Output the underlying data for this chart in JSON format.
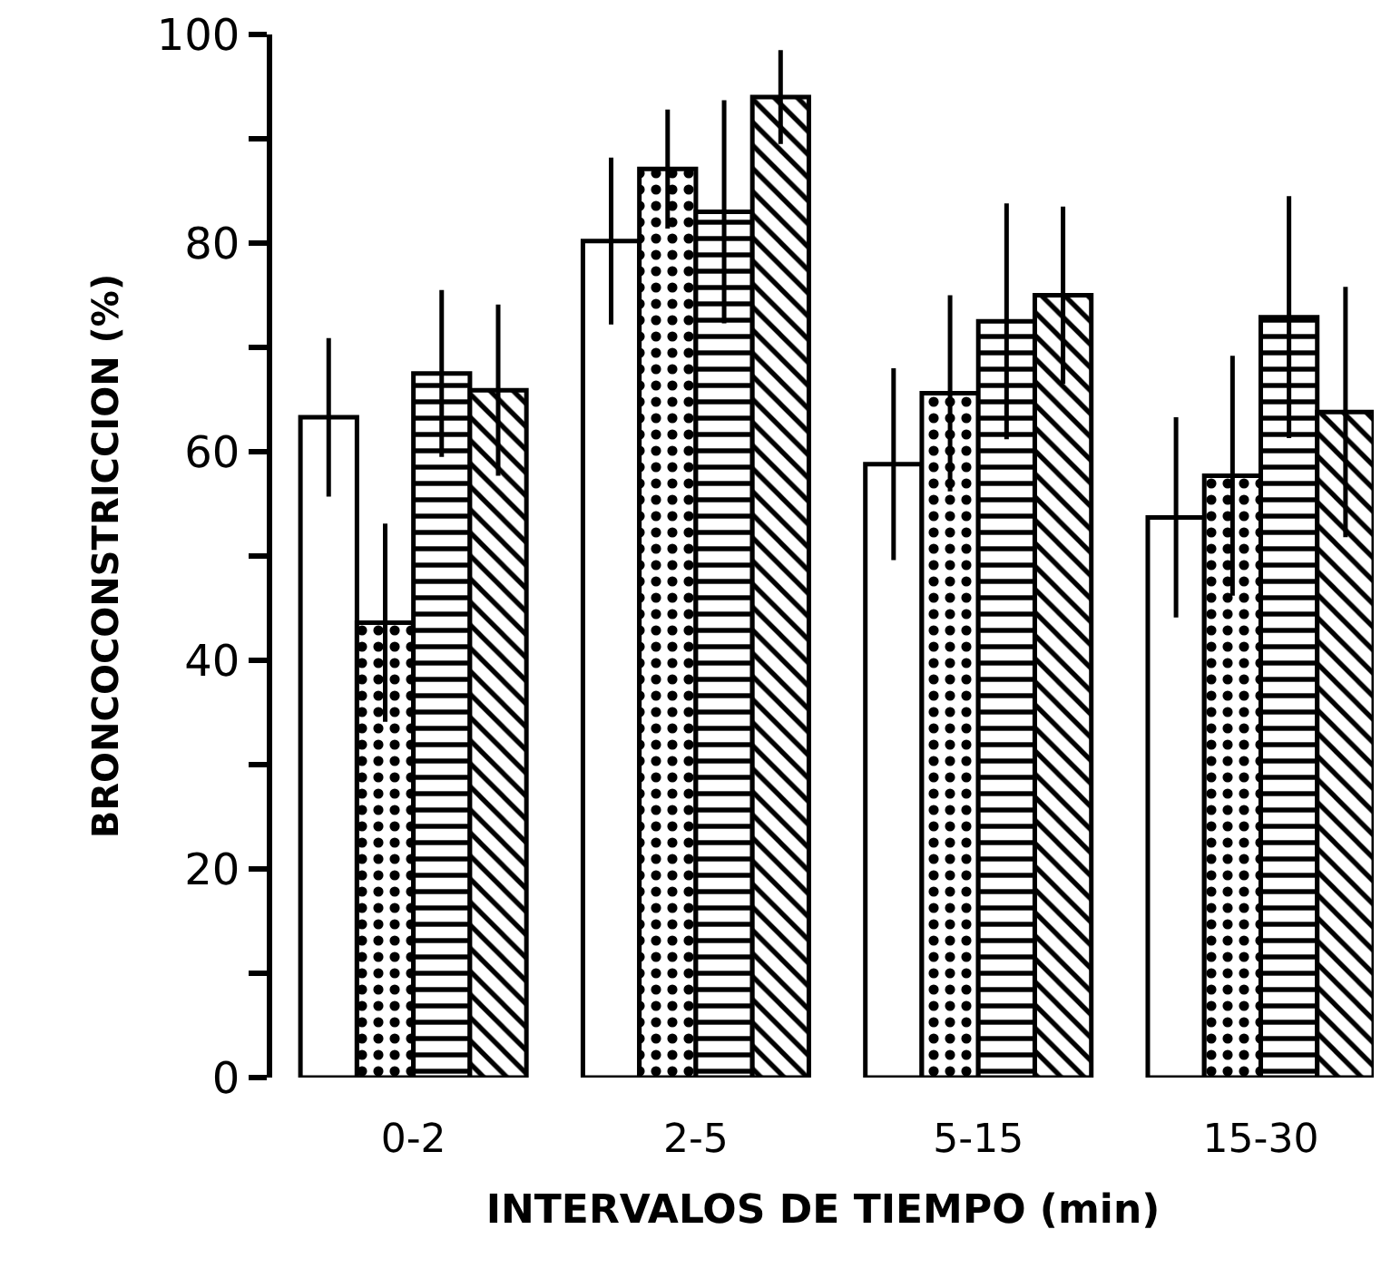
{
  "chart_data": {
    "type": "bar",
    "xlabel": "INTERVALOS DE TIEMPO (min)",
    "ylabel": "BRONCOCONSTRICCION (%)",
    "categories": [
      "0-2",
      "2-5",
      "5-15",
      "15-30"
    ],
    "series": [
      {
        "color": "#ffffff",
        "values": [
          63.3,
          80.2,
          58.8,
          53.7
        ],
        "errors": [
          7.6,
          8,
          9.2,
          9.6
        ]
      },
      {
        "color": "#000000",
        "values": [
          43.6,
          87.1,
          65.6,
          57.7
        ],
        "errors": [
          9.5,
          5.7,
          9.4,
          11.5
        ]
      },
      {
        "color": "#000000",
        "values": [
          67.5,
          83,
          72.5,
          72.9
        ],
        "errors": [
          8,
          10.7,
          11.3,
          11.6
        ]
      },
      {
        "color": "#000000",
        "values": [
          65.9,
          94,
          75,
          63.8
        ],
        "errors": [
          8.2,
          4.5,
          8.5,
          12
        ]
      }
    ],
    "ylim": [
      0,
      100
    ],
    "yticks": [
      0,
      {
        "value": 10,
        "label": null
      },
      20,
      {
        "value": 30,
        "label": null
      },
      40,
      {
        "value": 50,
        "label": null
      },
      60,
      {
        "value": 70,
        "label": null
      },
      80,
      {
        "value": 90,
        "label": null
      },
      100
    ]
  }
}
